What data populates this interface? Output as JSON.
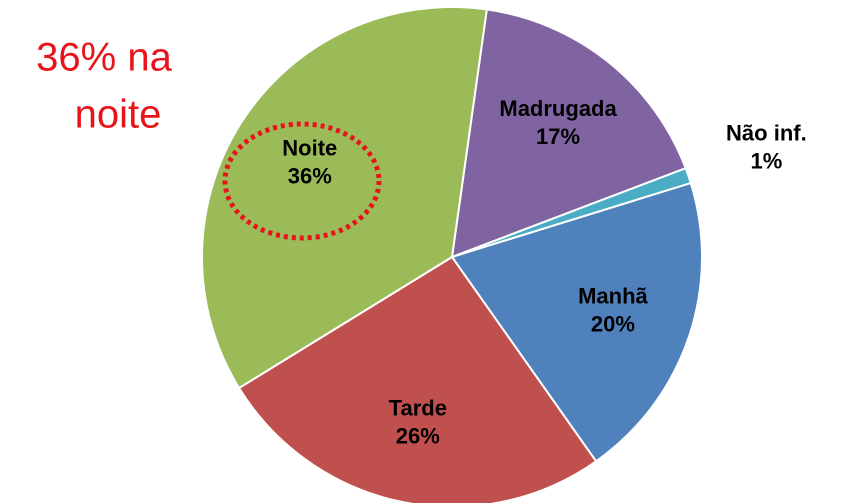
{
  "chart_data": {
    "type": "pie",
    "categories": [
      "Madrugada",
      "Não inf.",
      "Manhã",
      "Tarde",
      "Noite"
    ],
    "values": [
      17,
      1,
      20,
      26,
      36
    ],
    "value_labels": [
      "17%",
      "1%",
      "20%",
      "26%",
      "36%"
    ],
    "colors": [
      "#8064a2",
      "#4bacc6",
      "#4f81bd",
      "#c0504d",
      "#9bbb59"
    ],
    "annotation": [
      "36% na",
      "noite"
    ]
  }
}
